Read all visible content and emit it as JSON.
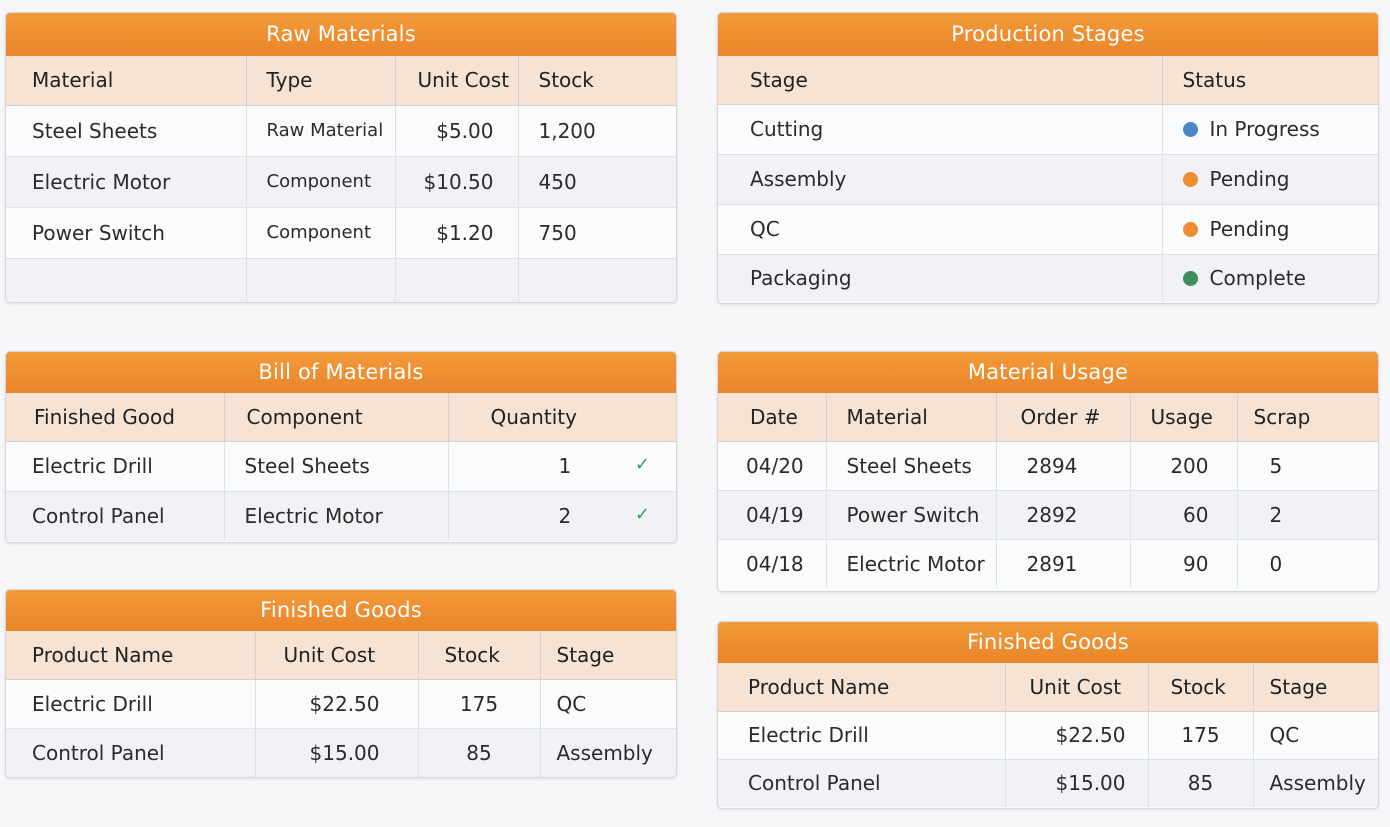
{
  "colors": {
    "accent": "#ee8c2e",
    "header_bg": "#f6e3d3",
    "status_in_progress": "#4a86c5",
    "status_pending": "#ee8c2e",
    "status_complete": "#3f8f5a"
  },
  "raw_materials": {
    "title": "Raw Materials",
    "headers": [
      "Material",
      "Type",
      "Unit Cost",
      "Stock"
    ],
    "rows": [
      [
        "Steel Sheets",
        "Raw Material",
        "$5.00",
        "1,200"
      ],
      [
        "Electric Motor",
        "Component",
        "$10.50",
        "450"
      ],
      [
        "Power Switch",
        "Component",
        "$1.20",
        "750"
      ]
    ]
  },
  "production_stages": {
    "title": "Production Stages",
    "headers": [
      "Stage",
      "Status"
    ],
    "rows": [
      {
        "stage": "Cutting",
        "status": "In Progress",
        "color": "#4a86c5"
      },
      {
        "stage": "Assembly",
        "status": "Pending",
        "color": "#ee8c2e"
      },
      {
        "stage": "QC",
        "status": "Pending",
        "color": "#ee8c2e"
      },
      {
        "stage": "Packaging",
        "status": "Complete",
        "color": "#3f8f5a"
      }
    ]
  },
  "bill_of_materials": {
    "title": "Bill of Materials",
    "headers": [
      "Finished Good",
      "Component",
      "Quantity"
    ],
    "rows": [
      {
        "good": "Electric Drill",
        "component": "Steel Sheets",
        "qty": "1",
        "check": "✓"
      },
      {
        "good": "Control Panel",
        "component": "Electric Motor",
        "qty": "2",
        "check": "✓"
      }
    ]
  },
  "material_usage": {
    "title": "Material Usage",
    "headers": [
      "Date",
      "Material",
      "Order #",
      "Usage",
      "Scrap"
    ],
    "rows": [
      [
        "04/20",
        "Steel Sheets",
        "2894",
        "200",
        "5"
      ],
      [
        "04/19",
        "Power Switch",
        "2892",
        "60",
        "2"
      ],
      [
        "04/18",
        "Electric Motor",
        "2891",
        "90",
        "0"
      ]
    ]
  },
  "finished_goods_left": {
    "title": "Finished Goods",
    "headers": [
      "Product Name",
      "Unit Cost",
      "Stock",
      "Stage"
    ],
    "rows": [
      [
        "Electric Drill",
        "$22.50",
        "175",
        "QC"
      ],
      [
        "Control Panel",
        "$15.00",
        "85",
        "Assembly"
      ]
    ]
  },
  "finished_goods_right": {
    "title": "Finished Goods",
    "headers": [
      "Product Name",
      "Unit Cost",
      "Stock",
      "Stage"
    ],
    "rows": [
      [
        "Electric Drill",
        "$22.50",
        "175",
        "QC"
      ],
      [
        "Control Panel",
        "$15.00",
        "85",
        "Assembly"
      ]
    ]
  }
}
